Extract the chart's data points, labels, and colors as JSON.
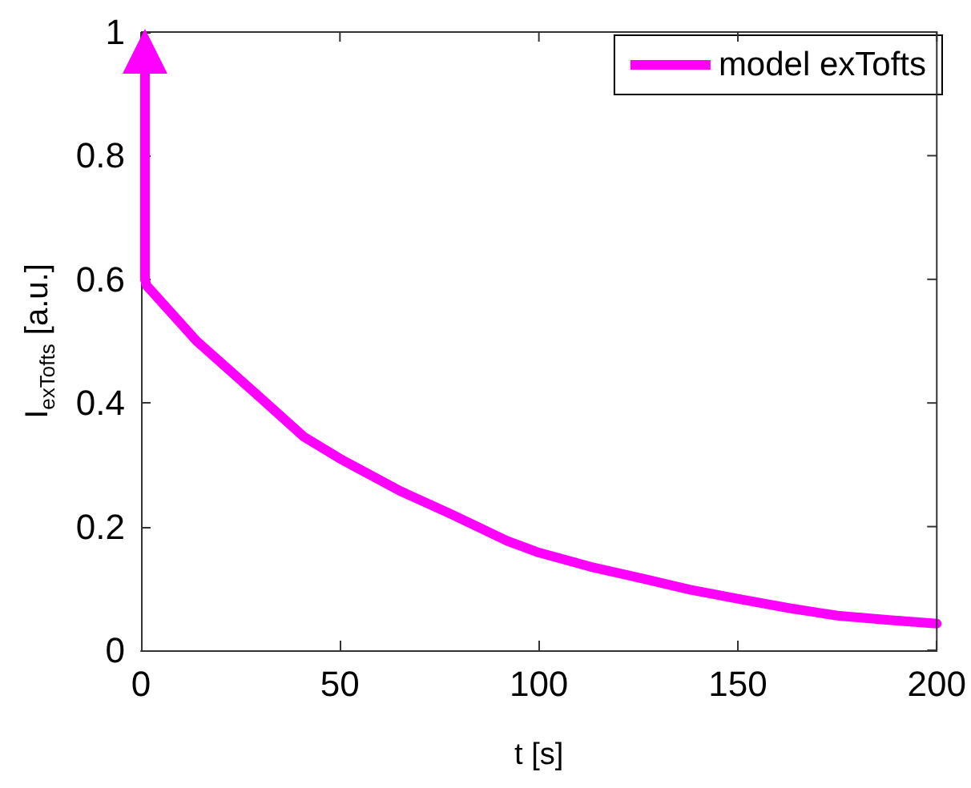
{
  "chart_data": {
    "type": "line",
    "xlabel": "t [s]",
    "ylabel": "I$_{exTofts}$ [a.u.]",
    "xlim": [
      0,
      200
    ],
    "xticks": [
      0,
      50,
      100,
      150,
      200
    ],
    "ylim": [
      0,
      1
    ],
    "yticks": [
      0,
      0.2,
      0.4,
      0.6,
      0.8,
      1
    ],
    "grid": false,
    "legend": "top right",
    "marker": "none",
    "line_style": "solid",
    "series": [
      {
        "name": "model exTofts",
        "color": "#ff00ff",
        "x": [
          1,
          1.4,
          14,
          28,
          41,
          50,
          65,
          78,
          92,
          100,
          113,
          126,
          138,
          151,
          163,
          175,
          188,
          200
        ],
        "values": [
          0.6,
          0.59,
          0.5,
          0.42,
          0.345,
          0.31,
          0.258,
          0.22,
          0.177,
          0.158,
          0.135,
          0.116,
          0.098,
          0.082,
          0.068,
          0.056,
          0.049,
          0.043
        ]
      }
    ]
  }
}
